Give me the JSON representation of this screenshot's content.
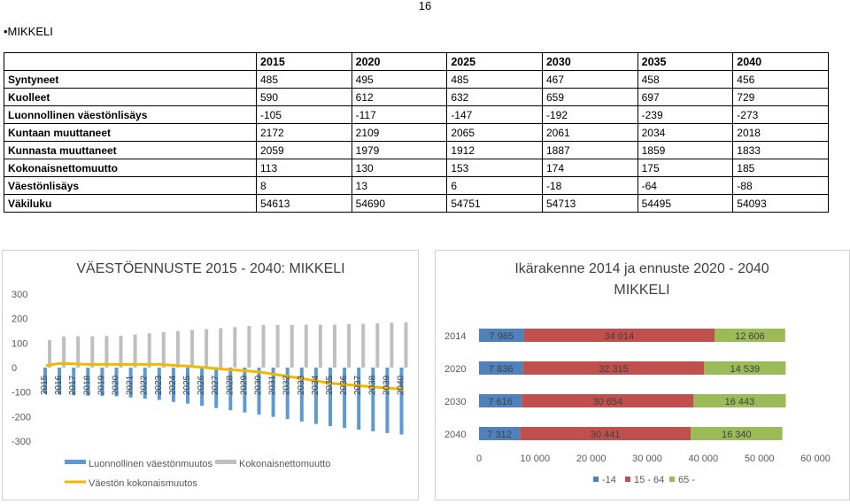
{
  "page_number": "16",
  "heading": "•MIKKELI",
  "table": {
    "header": [
      "",
      "2015",
      "2020",
      "2025",
      "2030",
      "2035",
      "2040"
    ],
    "rows": [
      {
        "label": "Syntyneet",
        "values": [
          "485",
          "495",
          "485",
          "467",
          "458",
          "456"
        ]
      },
      {
        "label": "Kuolleet",
        "values": [
          "590",
          "612",
          "632",
          "659",
          "697",
          "729"
        ]
      },
      {
        "label": "Luonnollinen väestönlisäys",
        "values": [
          "-105",
          "-117",
          "-147",
          "-192",
          "-239",
          "-273"
        ]
      },
      {
        "label": "Kuntaan muuttaneet",
        "values": [
          "2172",
          "2109",
          "2065",
          "2061",
          "2034",
          "2018"
        ]
      },
      {
        "label": "Kunnasta muuttaneet",
        "values": [
          "2059",
          "1979",
          "1912",
          "1887",
          "1859",
          "1833"
        ]
      },
      {
        "label": "Kokonaisnettomuutto",
        "values": [
          "113",
          "130",
          "153",
          "174",
          "175",
          "185"
        ]
      },
      {
        "label": "Väestönlisäys",
        "values": [
          "8",
          "13",
          "6",
          "-18",
          "-64",
          "-88"
        ]
      },
      {
        "label": "Väkiluku",
        "values": [
          "54613",
          "54690",
          "54751",
          "54713",
          "54495",
          "54093"
        ]
      }
    ]
  },
  "chart_data": [
    {
      "type": "bar",
      "title": "VÄESTÖENNUSTE 2015 - 2040: MIKKELI",
      "categories": [
        "2015",
        "2016",
        "2017",
        "2018",
        "2019",
        "2020",
        "2021",
        "2022",
        "2023",
        "2024",
        "2025",
        "2026",
        "2027",
        "2028",
        "2029",
        "2030",
        "2031",
        "2032",
        "2033",
        "2034",
        "2035",
        "2036",
        "2037",
        "2038",
        "2039",
        "2040"
      ],
      "ylim": [
        -300,
        300
      ],
      "yticks": [
        300,
        200,
        100,
        0,
        -100,
        -200,
        -300
      ],
      "series": [
        {
          "name": "Luonnollinen väestönmuutos",
          "kind": "bar",
          "color": "#5b9bd5",
          "values": [
            -105,
            -110,
            -113,
            -115,
            -116,
            -117,
            -122,
            -127,
            -132,
            -140,
            -147,
            -156,
            -165,
            -174,
            -183,
            -192,
            -201,
            -210,
            -220,
            -230,
            -239,
            -246,
            -253,
            -260,
            -267,
            -273
          ]
        },
        {
          "name": "Kokonaisnettomuutto",
          "kind": "bar",
          "color": "#bfbfbf",
          "values": [
            113,
            127,
            128,
            128,
            129,
            130,
            135,
            140,
            145,
            149,
            153,
            157,
            161,
            165,
            170,
            174,
            174,
            174,
            175,
            175,
            175,
            177,
            179,
            181,
            183,
            185
          ]
        },
        {
          "name": "Väestön kokonaismuutos",
          "kind": "line",
          "color": "#f2b800",
          "values": [
            8,
            17,
            15,
            13,
            13,
            13,
            13,
            13,
            13,
            9,
            6,
            1,
            -4,
            -9,
            -13,
            -18,
            -27,
            -36,
            -45,
            -55,
            -64,
            -69,
            -74,
            -79,
            -84,
            -88
          ]
        }
      ],
      "legend": "bottom"
    },
    {
      "type": "bar",
      "orientation": "horizontal",
      "stacked": true,
      "title": "Ikärakenne 2014 ja ennuste 2020 - 2040 MIKKELI",
      "categories": [
        "2014",
        "2020",
        "2030",
        "2040"
      ],
      "xlim": [
        0,
        60000
      ],
      "xticks": [
        "0",
        "10 000",
        "20 000",
        "30 000",
        "40 000",
        "50 000",
        "60 000"
      ],
      "series": [
        {
          "name": "-14",
          "color": "#4f81bd",
          "values": [
            7985,
            7836,
            7616,
            7312
          ],
          "labels": [
            "7 985",
            "7 836",
            "7 616",
            "7 312"
          ]
        },
        {
          "name": "15 - 64",
          "color": "#c0504d",
          "values": [
            34014,
            32315,
            30654,
            30441
          ],
          "labels": [
            "34 014",
            "32 315",
            "30 654",
            "30 441"
          ]
        },
        {
          "name": "65 -",
          "color": "#9bbb59",
          "values": [
            12606,
            14539,
            16443,
            16340
          ],
          "labels": [
            "12 606",
            "14 539",
            "16 443",
            "16 340"
          ]
        }
      ],
      "legend": "bottom"
    }
  ]
}
